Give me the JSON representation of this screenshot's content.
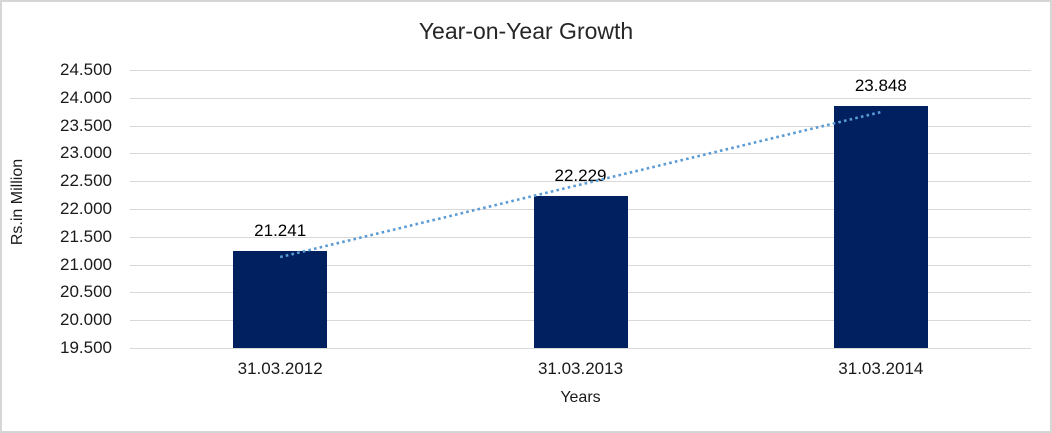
{
  "title": "Year-on-Year Growth",
  "chart_data": {
    "type": "bar",
    "title": "Year-on-Year Growth",
    "xlabel": "Years",
    "ylabel": "Rs.in Million",
    "categories": [
      "31.03.2012",
      "31.03.2013",
      "31.03.2014"
    ],
    "values": [
      21241,
      22229,
      23848
    ],
    "data_labels": [
      "21.241",
      "22.229",
      "23.848"
    ],
    "ylim": [
      19500,
      24500
    ],
    "y_tick_step": 500,
    "y_tick_labels": [
      "24.500",
      "24.000",
      "23.500",
      "23.000",
      "22.500",
      "22.000",
      "21.500",
      "21.000",
      "20.500",
      "20.000",
      "19.500"
    ],
    "grid": true,
    "legend_position": "none",
    "bar_color": "#002060",
    "gridline_color": "#d9d9d9",
    "trendline": {
      "type": "linear",
      "style": "dotted",
      "color": "#5B9BD5",
      "start_value": 21136,
      "end_value": 23743
    }
  }
}
